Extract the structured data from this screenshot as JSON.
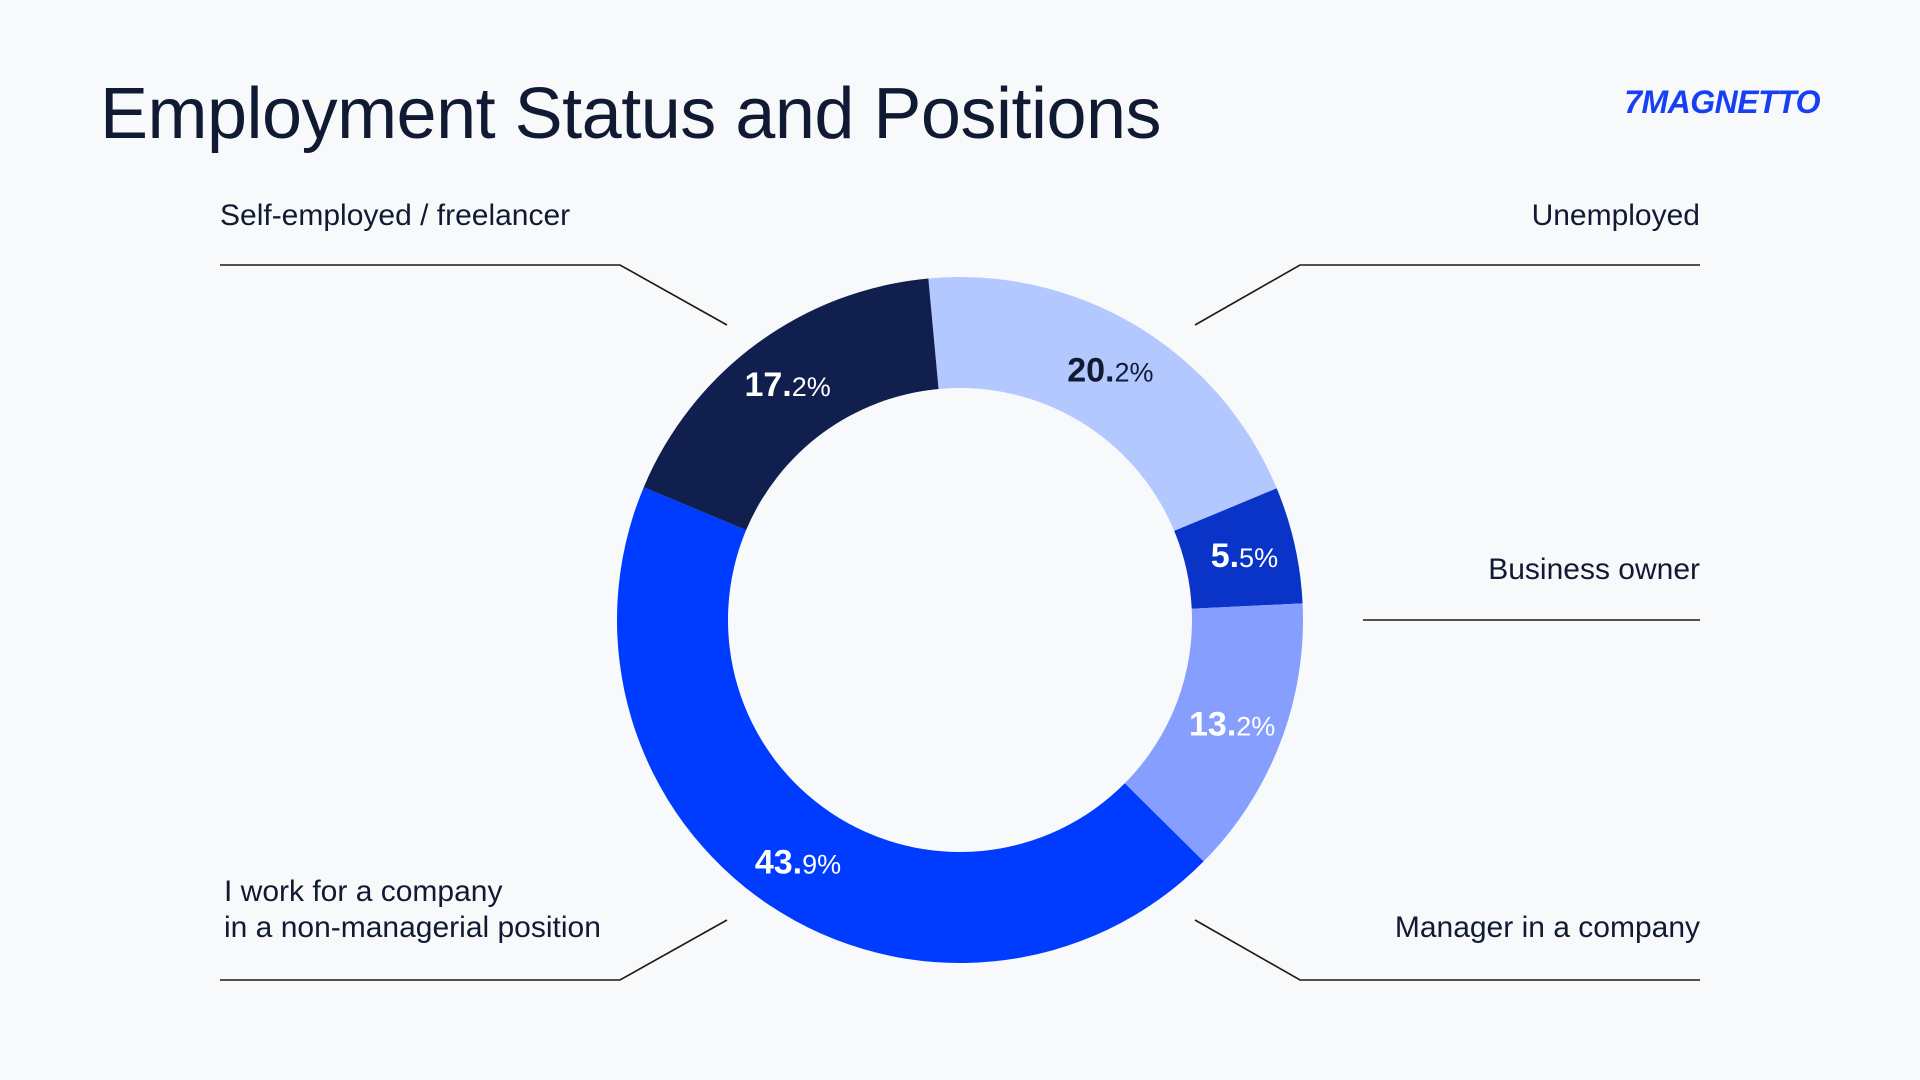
{
  "title": "Employment Status and Positions",
  "logo": "7MAGNETTO",
  "colors": {
    "background": "#f8f9fa",
    "text": "#111a33",
    "brand": "#1740f5",
    "leader": "#1a1a1a"
  },
  "chart_data": {
    "type": "pie",
    "variant": "donut",
    "title": "Employment Status and Positions",
    "unit": "%",
    "legend": "none",
    "slices": [
      {
        "label": "Unemployed",
        "value": 20.2,
        "value_int": "20.",
        "value_dec": "2%",
        "color": "#b3c8ff",
        "value_text_color": "#111a33"
      },
      {
        "label": "Business owner",
        "value": 5.5,
        "value_int": "5.",
        "value_dec": "5%",
        "color": "#0a34c8",
        "value_text_color": "#ffffff"
      },
      {
        "label": "Manager in a company",
        "value": 13.2,
        "value_int": "13.",
        "value_dec": "2%",
        "color": "#869fff",
        "value_text_color": "#ffffff"
      },
      {
        "label": "I work for a company\nin a non-managerial position",
        "value": 43.9,
        "value_int": "43.",
        "value_dec": "9%",
        "color": "#003cff",
        "value_text_color": "#ffffff"
      },
      {
        "label": "Self-employed / freelancer",
        "value": 17.2,
        "value_int": "17.",
        "value_dec": "2%",
        "color": "#101f4e",
        "value_text_color": "#ffffff"
      }
    ]
  }
}
